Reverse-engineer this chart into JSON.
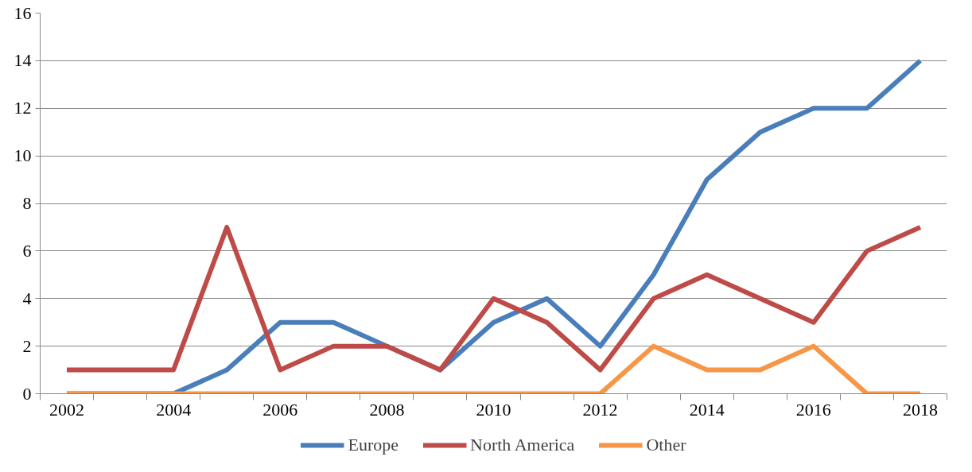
{
  "chart_data": {
    "type": "line",
    "categories": [
      "2002",
      null,
      "2004",
      null,
      "2006",
      null,
      "2008",
      null,
      "2010",
      null,
      "2012",
      null,
      "2014",
      null,
      "2016",
      null,
      "2018"
    ],
    "series": [
      {
        "name": "Europe",
        "color": "#4a7ebb",
        "values": [
          0,
          0,
          0,
          1,
          3,
          3,
          2,
          1,
          3,
          4,
          2,
          5,
          9,
          11,
          12,
          12,
          14
        ]
      },
      {
        "name": "North America",
        "color": "#be4b48",
        "values": [
          1,
          1,
          1,
          7,
          1,
          2,
          2,
          1,
          4,
          3,
          1,
          4,
          5,
          4,
          3,
          6,
          7
        ]
      },
      {
        "name": "Other",
        "color": "#f79646",
        "values": [
          0,
          0,
          0,
          0,
          0,
          0,
          0,
          0,
          0,
          0,
          0,
          2,
          1,
          1,
          2,
          0,
          0
        ]
      }
    ],
    "ylim": [
      0,
      16
    ],
    "yticks": [
      0,
      2,
      4,
      6,
      8,
      10,
      12,
      14,
      16
    ],
    "grid": "y",
    "legend": "bottom",
    "marker": "none",
    "line_style": "solid"
  }
}
